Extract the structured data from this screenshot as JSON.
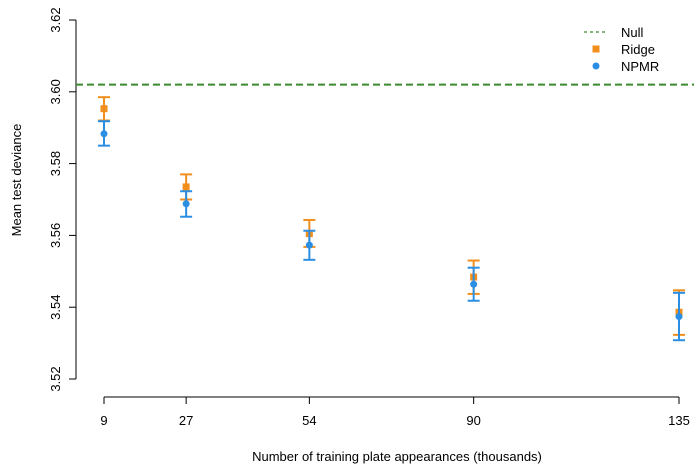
{
  "chart_data": {
    "type": "scatter",
    "xlabel": "Number of training plate appearances (thousands)",
    "ylabel": "Mean test deviance",
    "x": [
      9,
      27,
      54,
      90,
      135
    ],
    "x_tick_labels": [
      "9",
      "27",
      "54",
      "90",
      "135"
    ],
    "y_ticks": [
      3.52,
      3.54,
      3.56,
      3.58,
      3.6,
      3.62
    ],
    "y_tick_labels": [
      "3.52",
      "3.54",
      "3.56",
      "3.58",
      "3.60",
      "3.62"
    ],
    "xlim": [
      9,
      135
    ],
    "ylim": [
      3.52,
      3.62
    ],
    "null_value": 3.602,
    "series": [
      {
        "name": "Ridge",
        "color": "#F28E1C",
        "marker": "square",
        "values": [
          3.5953,
          3.5735,
          3.5605,
          3.5484,
          3.5386
        ],
        "lower": [
          3.592,
          3.57,
          3.5568,
          3.5437,
          3.5323
        ],
        "upper": [
          3.5985,
          3.577,
          3.5643,
          3.553,
          3.5447
        ]
      },
      {
        "name": "NPMR",
        "color": "#2A8FE3",
        "marker": "circle",
        "values": [
          3.5883,
          3.5688,
          3.5573,
          3.5464,
          3.5374
        ],
        "lower": [
          3.585,
          3.5652,
          3.5532,
          3.5418,
          3.5308
        ],
        "upper": [
          3.5918,
          3.5723,
          3.5613,
          3.551,
          3.544
        ]
      }
    ],
    "legend": {
      "placement": "top-right",
      "entries": [
        {
          "label": "Null",
          "color": "#3A8A2E",
          "style": "dashed-line"
        },
        {
          "label": "Ridge",
          "color": "#F28E1C",
          "style": "square"
        },
        {
          "label": "NPMR",
          "color": "#2A8FE3",
          "style": "circle"
        }
      ]
    },
    "grid": false
  }
}
